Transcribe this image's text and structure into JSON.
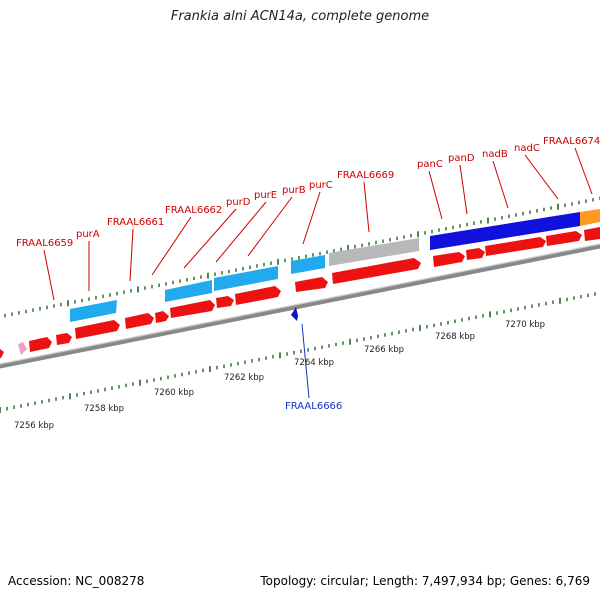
{
  "title": "Frankia alni ACN14a, complete genome",
  "accession_text": "Accession: NC_008278",
  "stats_text": "Topology: circular; Length: 7,497,934 bp; Genes: 6,769",
  "colors": {
    "cds_forward": "#ee1111",
    "cds_reverse": "#1111cc",
    "feature_cyan": "#22aaee",
    "feature_gray": "#b8b8b8",
    "feature_blue": "#1111dd",
    "feature_orange": "#ff9922",
    "feature_pink": "#f0a0c8",
    "tick": "#226622",
    "backbone": "#888888",
    "label_forward": "#cc0000",
    "label_reverse": "#1133bb"
  },
  "scale_labels": [
    "7256 kbp",
    "7258 kbp",
    "7260 kbp",
    "7262 kbp",
    "7264 kbp",
    "7266 kbp",
    "7268 kbp",
    "7270 kbp"
  ],
  "forward_gene_labels": [
    "FRAAL6659",
    "purA",
    "FRAAL6661",
    "FRAAL6662",
    "purD",
    "purE",
    "purB",
    "purC",
    "FRAAL6669",
    "panC",
    "panD",
    "nadB",
    "nadC",
    "FRAAL6674"
  ],
  "reverse_gene_labels": [
    "FRAAL6666"
  ]
}
